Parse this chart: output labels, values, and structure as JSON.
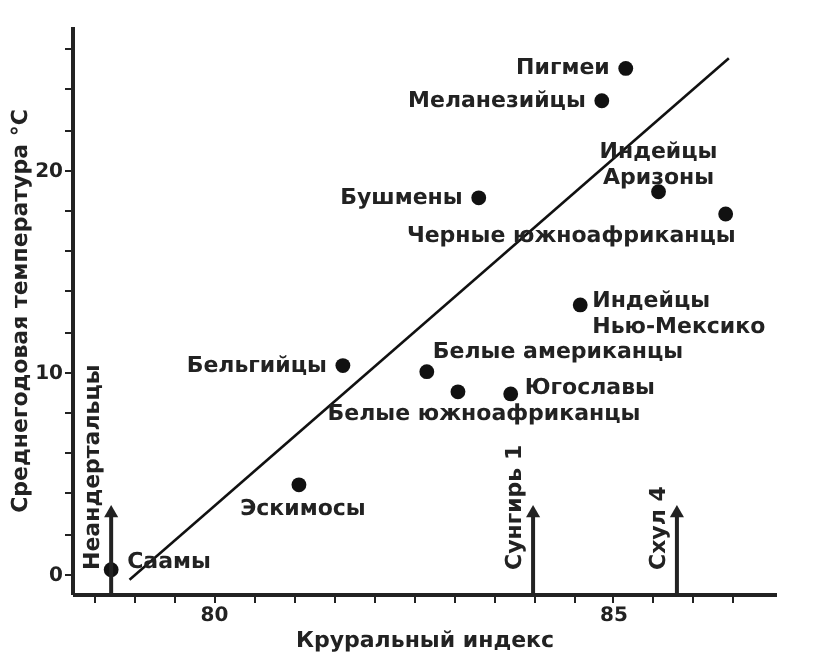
{
  "chart_data": {
    "type": "scatter",
    "xlabel": "Круральный индекс",
    "ylabel": "Среднегодовая температура °C",
    "xlim": [
      78.23,
      87.04
    ],
    "ylim": [
      -1,
      27.1
    ],
    "xticks": [
      {
        "value": 78.5,
        "label": null
      },
      {
        "value": 79,
        "label": null
      },
      {
        "value": 79.5,
        "label": null
      },
      80,
      {
        "value": 80.5,
        "label": null
      },
      {
        "value": 81,
        "label": null
      },
      {
        "value": 81.5,
        "label": null
      },
      {
        "value": 82,
        "label": null
      },
      {
        "value": 82.5,
        "label": null
      },
      {
        "value": 83,
        "label": null
      },
      {
        "value": 83.5,
        "label": null
      },
      {
        "value": 84,
        "label": null
      },
      {
        "value": 84.5,
        "label": null
      },
      85,
      {
        "value": 85.5,
        "label": null
      },
      {
        "value": 86,
        "label": null
      },
      {
        "value": 86.5,
        "label": null
      }
    ],
    "yticks": [
      0,
      {
        "value": 2,
        "label": null
      },
      {
        "value": 4,
        "label": null
      },
      {
        "value": 6,
        "label": null
      },
      {
        "value": 8,
        "label": null
      },
      10,
      {
        "value": 12,
        "label": null
      },
      {
        "value": 14,
        "label": null
      },
      {
        "value": 16,
        "label": null
      },
      {
        "value": 18,
        "label": null
      },
      20,
      {
        "value": 22,
        "label": null
      },
      {
        "value": 24,
        "label": null
      },
      {
        "value": 26,
        "label": null
      }
    ],
    "grid": false,
    "line_style": "solid",
    "series": [
      {
        "type": "scatter",
        "marker": "circle",
        "color": "#111111",
        "x": [
          85.16,
          84.86,
          83.32,
          85.57,
          86.41,
          84.59,
          81.62,
          82.67,
          83.06,
          83.72,
          81.07,
          78.72
        ],
        "values": [
          25.0,
          23.4,
          18.6,
          18.9,
          17.8,
          13.3,
          10.3,
          10.0,
          9.0,
          8.9,
          4.4,
          0.2
        ]
      },
      {
        "type": "line",
        "marker": "none",
        "color": "#111111",
        "x": [
          78.95,
          86.45
        ],
        "values": [
          -0.3,
          25.5
        ]
      }
    ],
    "annotations": [
      {
        "text": "Пигмеи",
        "x": 85.16,
        "y": 25.0
      },
      {
        "text": "Меланезийцы",
        "x": 84.86,
        "y": 23.4
      },
      {
        "text": "Бушмены",
        "x": 83.32,
        "y": 18.6
      },
      {
        "text": "Индейцы\nАризоны",
        "x": 85.57,
        "y": 18.9
      },
      {
        "text": "Черные южноафриканцы",
        "x": 86.41,
        "y": 17.8
      },
      {
        "text": "Индейцы\nНью-Мексико",
        "x": 84.59,
        "y": 13.3
      },
      {
        "text": "Бельгийцы",
        "x": 81.62,
        "y": 10.3
      },
      {
        "text": "Белые американцы",
        "x": 82.67,
        "y": 10.0
      },
      {
        "text": "Белые южноафриканцы",
        "x": 83.06,
        "y": 9.0
      },
      {
        "text": "Югославы",
        "x": 83.72,
        "y": 8.9
      },
      {
        "text": "Эскимосы",
        "x": 81.07,
        "y": 4.4
      },
      {
        "text": "Саамы",
        "x": 78.72,
        "y": 0.2
      },
      {
        "text": "Неандертальцы",
        "x": 78.72,
        "y": 3.1
      },
      {
        "text": "Сунгирь 1",
        "x": 84.0,
        "y": 3.1
      },
      {
        "text": "Схул 4",
        "x": 85.8,
        "y": 3.1
      }
    ]
  }
}
